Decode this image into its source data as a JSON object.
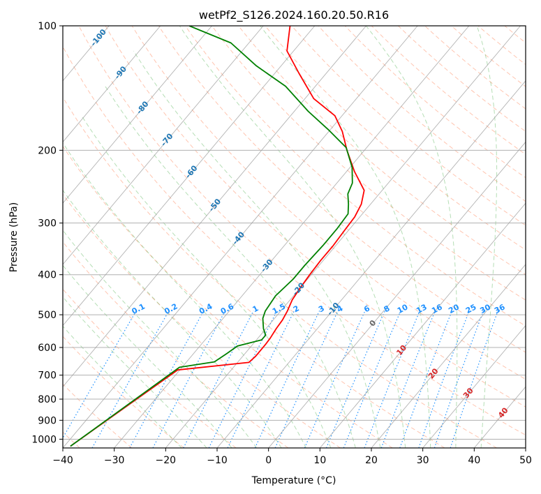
{
  "chart_data": {
    "type": "line",
    "subtype": "skew-T log-P diagram",
    "title": "wetPf2_S126.2024.160.20.50.R16",
    "xlabel": "Temperature (°C)",
    "ylabel": "Pressure (hPa)",
    "xlim": [
      -40,
      50
    ],
    "ylim": [
      1050,
      100
    ],
    "y_scale": "log",
    "grid": true,
    "x_ticks": [
      -40,
      -30,
      -20,
      -10,
      0,
      10,
      20,
      30,
      40,
      50
    ],
    "x_tick_labels": [
      "−40",
      "−30",
      "−20",
      "−10",
      "0",
      "10",
      "20",
      "30",
      "40",
      "50"
    ],
    "y_ticks": [
      100,
      200,
      300,
      400,
      500,
      600,
      700,
      800,
      900,
      1000
    ],
    "y_tick_labels": [
      "100",
      "200",
      "300",
      "400",
      "500",
      "600",
      "700",
      "800",
      "900",
      "1000"
    ],
    "isotherm_labels": {
      "color": "#1f77b4",
      "values": [
        "-100",
        "-90",
        "-80",
        "-70",
        "-60",
        "-50",
        "-40",
        "-30",
        "-20",
        "-10"
      ],
      "pressures": [
        107,
        130,
        158,
        189,
        226,
        272,
        327,
        381,
        434,
        485
      ]
    },
    "mixing_ratio_labels": {
      "color": "#1e90ff",
      "label_pressure": 485,
      "values": [
        "0.1",
        "0.2",
        "0.4",
        "0.6",
        "1",
        "1.5",
        "2",
        "3",
        "4",
        "6",
        "8",
        "10",
        "13",
        "16",
        "20",
        "25",
        "30",
        "36"
      ]
    },
    "warm_isotherm_labels": {
      "values": [
        "0",
        "10",
        "20",
        "30",
        "40"
      ],
      "colors": [
        "#666666",
        "#d62728",
        "#d62728",
        "#d62728",
        "#d62728"
      ],
      "pressures": [
        525,
        610,
        695,
        775,
        865
      ]
    },
    "colors": {
      "temperature": "#ff0000",
      "dewpoint": "#008000",
      "isobar_grid": "#b0b0b0",
      "isotherm_grid": "#9a9a9a",
      "dry_adiabat": "#ff7f50",
      "moist_adiabat": "#2ca02c",
      "mixing_ratio": "#1e90ff"
    },
    "series": [
      {
        "key": "temperature",
        "color": "#ff0000",
        "points": [
          [
            -38.8,
            1040
          ],
          [
            -30.4,
            680
          ],
          [
            -17.8,
            652
          ],
          [
            -17.5,
            630
          ],
          [
            -17.5,
            590
          ],
          [
            -17.6,
            570
          ],
          [
            -18.0,
            540
          ],
          [
            -18.2,
            515
          ],
          [
            -18.7,
            490
          ],
          [
            -19.6,
            460
          ],
          [
            -20.0,
            430
          ],
          [
            -20.3,
            400
          ],
          [
            -20.5,
            370
          ],
          [
            -20.5,
            340
          ],
          [
            -20.8,
            310
          ],
          [
            -21.0,
            290
          ],
          [
            -21.8,
            270
          ],
          [
            -23.5,
            250
          ],
          [
            -28.5,
            225
          ],
          [
            -33.4,
            200
          ],
          [
            -37.4,
            180
          ],
          [
            -41.4,
            165
          ],
          [
            -48.3,
            150
          ],
          [
            -55.4,
            130
          ],
          [
            -61.3,
            115
          ],
          [
            -64.8,
            100
          ]
        ]
      },
      {
        "key": "dewpoint",
        "color": "#008000",
        "points": [
          [
            -38.8,
            1040
          ],
          [
            -30.5,
            670
          ],
          [
            -24.6,
            650
          ],
          [
            -23.5,
            620
          ],
          [
            -22.7,
            595
          ],
          [
            -19.0,
            575
          ],
          [
            -19.0,
            560
          ],
          [
            -20.5,
            540
          ],
          [
            -22.3,
            510
          ],
          [
            -23.0,
            490
          ],
          [
            -23.5,
            450
          ],
          [
            -22.8,
            410
          ],
          [
            -22.8,
            380
          ],
          [
            -22.5,
            340
          ],
          [
            -22.5,
            310
          ],
          [
            -22.8,
            285
          ],
          [
            -24.3,
            270
          ],
          [
            -26.1,
            255
          ],
          [
            -27.0,
            240
          ],
          [
            -29.6,
            220
          ],
          [
            -34.0,
            197
          ],
          [
            -40.5,
            178
          ],
          [
            -47.3,
            161
          ],
          [
            -55.8,
            140
          ],
          [
            -64.8,
            125
          ],
          [
            -73.5,
            110
          ],
          [
            -84.4,
            100
          ]
        ]
      }
    ]
  }
}
